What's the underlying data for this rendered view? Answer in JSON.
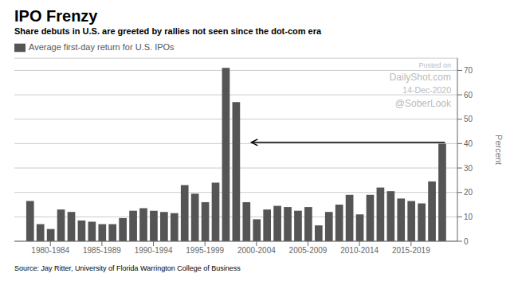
{
  "chart_data": {
    "type": "bar",
    "title": "IPO Frenzy",
    "subtitle": "Share debuts in U.S. are greeted by rallies not seen since the dot-com era",
    "ylabel": "Percent",
    "source": "Source: Jay Ritter, University of Florida Warrington College of Business",
    "x": [
      1980,
      1981,
      1982,
      1983,
      1984,
      1985,
      1986,
      1987,
      1988,
      1989,
      1990,
      1991,
      1992,
      1993,
      1994,
      1995,
      1996,
      1997,
      1998,
      1999,
      2000,
      2001,
      2002,
      2003,
      2004,
      2005,
      2006,
      2007,
      2008,
      2009,
      2010,
      2011,
      2012,
      2013,
      2014,
      2015,
      2016,
      2017,
      2018,
      2019,
      2020
    ],
    "series": [
      {
        "name": "Average first-day return for U.S. IPOs",
        "color": "#555555",
        "values": [
          16.5,
          7.0,
          5.0,
          13.0,
          12.0,
          8.5,
          8.0,
          7.0,
          7.0,
          9.5,
          12.5,
          13.5,
          12.5,
          12.0,
          11.5,
          23.0,
          19.5,
          16.0,
          24.0,
          71.0,
          57.0,
          16.0,
          9.0,
          13.0,
          14.5,
          14.0,
          12.5,
          14.0,
          6.5,
          12.0,
          15.0,
          19.0,
          11.0,
          19.0,
          22.0,
          20.5,
          17.5,
          16.5,
          15.5,
          24.5,
          40.0
        ]
      }
    ],
    "xlim": [
      1978.5,
      2021.5
    ],
    "xticks": [
      {
        "value": 1982,
        "label": "1980-1984"
      },
      {
        "value": 1987,
        "label": "1985-1989"
      },
      {
        "value": 1992,
        "label": "1990-1994"
      },
      {
        "value": 1997,
        "label": "1995-1999"
      },
      {
        "value": 2002,
        "label": "2000-2004"
      },
      {
        "value": 2007,
        "label": "2005-2009"
      },
      {
        "value": 2012,
        "label": "2010-2014"
      },
      {
        "value": 2017,
        "label": "2015-2019"
      }
    ],
    "ylim": [
      0,
      75
    ],
    "yticks": [
      0,
      10,
      20,
      30,
      40,
      50,
      60,
      70
    ],
    "grid": true,
    "legend": "upper left",
    "annotations": [
      {
        "text": "Posted on",
        "color": "#bbbbbb"
      },
      {
        "text": "DailyShot.com",
        "color": "#bbbbbb"
      },
      {
        "text": "14-Dec-2020",
        "color": "#bbbbbb"
      },
      {
        "text": "@SoberLook",
        "color": "#bbbbbb"
      },
      {
        "type": "arrow",
        "x": 2020.3,
        "x_end": 2001.5,
        "y": 40.5
      }
    ]
  }
}
